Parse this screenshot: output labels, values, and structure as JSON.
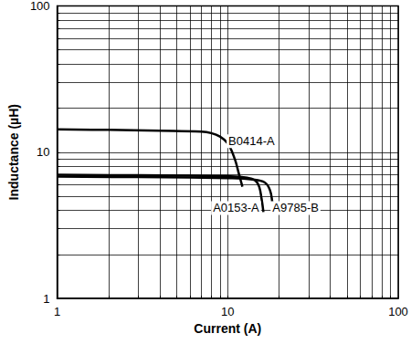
{
  "chart_data": {
    "type": "line",
    "x_label": "Current (A)",
    "y_label": "Inductance (µH)",
    "log": true,
    "grid": true,
    "xlim": [
      1,
      100
    ],
    "ylim": [
      1,
      100
    ],
    "xticks": [
      1,
      10,
      100
    ],
    "yticks": [
      1,
      10,
      100
    ],
    "series": [
      {
        "name": "B0414-A",
        "color": "#000000",
        "x": [
          1,
          2,
          4,
          7,
          8,
          9,
          10,
          11,
          11.6,
          12.2
        ],
        "values": [
          14.3,
          14.2,
          14.0,
          13.8,
          13.5,
          12.8,
          11.5,
          9.0,
          7.2,
          5.8
        ]
      },
      {
        "name": "A0153-A",
        "color": "#000000",
        "x": [
          1,
          3,
          6,
          10,
          13,
          14.5,
          15.3,
          15.8,
          16.2
        ],
        "values": [
          7.0,
          6.95,
          6.9,
          6.85,
          6.7,
          6.4,
          5.8,
          4.8,
          3.9
        ]
      },
      {
        "name": "A9785-B",
        "color": "#000000",
        "x": [
          1,
          3,
          6,
          10,
          14,
          16.5,
          17.7,
          18.3,
          18.7
        ],
        "values": [
          6.8,
          6.75,
          6.7,
          6.65,
          6.5,
          6.2,
          5.5,
          4.5,
          3.9
        ]
      }
    ],
    "annotations": [
      {
        "text": "B0414-A",
        "x": 13.8,
        "y": 11.9
      },
      {
        "text": "A0153-A",
        "x": 11.2,
        "y": 4.15
      },
      {
        "text": "A9785-B",
        "x": 25,
        "y": 4.15
      }
    ]
  }
}
